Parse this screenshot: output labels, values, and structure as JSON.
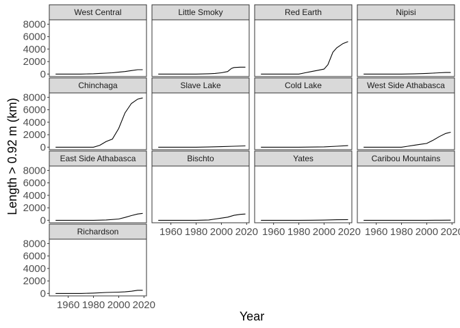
{
  "chart_data": {
    "type": "line",
    "layout": "facet-wrap",
    "xlabel": "Year",
    "ylabel": "Length > 0.92 m (km)",
    "xlim": [
      1945,
      2022
    ],
    "ylim": [
      -400,
      8700
    ],
    "x_ticks": [
      1960,
      1980,
      2000,
      2020
    ],
    "y_ticks": [
      0,
      2000,
      4000,
      6000,
      8000
    ],
    "grid": false,
    "panels": [
      {
        "name": "West Central",
        "points": [
          [
            1950,
            0
          ],
          [
            1960,
            0
          ],
          [
            1970,
            0
          ],
          [
            1980,
            50
          ],
          [
            1985,
            100
          ],
          [
            1990,
            150
          ],
          [
            1995,
            200
          ],
          [
            2000,
            300
          ],
          [
            2005,
            400
          ],
          [
            2010,
            550
          ],
          [
            2015,
            700
          ],
          [
            2019,
            700
          ]
        ]
      },
      {
        "name": "Little Smoky",
        "points": [
          [
            1950,
            0
          ],
          [
            1960,
            0
          ],
          [
            1970,
            0
          ],
          [
            1980,
            0
          ],
          [
            1985,
            20
          ],
          [
            1990,
            50
          ],
          [
            1995,
            100
          ],
          [
            2000,
            200
          ],
          [
            2005,
            400
          ],
          [
            2008,
            900
          ],
          [
            2010,
            1050
          ],
          [
            2015,
            1100
          ],
          [
            2019,
            1100
          ]
        ]
      },
      {
        "name": "Red Earth",
        "points": [
          [
            1950,
            0
          ],
          [
            1960,
            0
          ],
          [
            1970,
            0
          ],
          [
            1980,
            0
          ],
          [
            1985,
            200
          ],
          [
            1990,
            400
          ],
          [
            1995,
            600
          ],
          [
            2000,
            800
          ],
          [
            2003,
            1500
          ],
          [
            2007,
            3500
          ],
          [
            2010,
            4200
          ],
          [
            2015,
            4900
          ],
          [
            2019,
            5200
          ]
        ]
      },
      {
        "name": "Nipisi",
        "points": [
          [
            1950,
            0
          ],
          [
            1960,
            0
          ],
          [
            1970,
            0
          ],
          [
            1980,
            0
          ],
          [
            1990,
            30
          ],
          [
            2000,
            100
          ],
          [
            2005,
            150
          ],
          [
            2010,
            200
          ],
          [
            2015,
            250
          ],
          [
            2019,
            250
          ]
        ]
      },
      {
        "name": "Chinchaga",
        "points": [
          [
            1950,
            0
          ],
          [
            1960,
            0
          ],
          [
            1970,
            0
          ],
          [
            1980,
            0
          ],
          [
            1985,
            300
          ],
          [
            1990,
            900
          ],
          [
            1995,
            1300
          ],
          [
            2000,
            3000
          ],
          [
            2005,
            5500
          ],
          [
            2010,
            7000
          ],
          [
            2015,
            7700
          ],
          [
            2019,
            7900
          ]
        ]
      },
      {
        "name": "Slave Lake",
        "points": [
          [
            1950,
            0
          ],
          [
            1960,
            0
          ],
          [
            1970,
            0
          ],
          [
            1980,
            0
          ],
          [
            1990,
            30
          ],
          [
            2000,
            80
          ],
          [
            2010,
            150
          ],
          [
            2019,
            200
          ]
        ]
      },
      {
        "name": "Cold Lake",
        "points": [
          [
            1950,
            0
          ],
          [
            1960,
            0
          ],
          [
            1970,
            0
          ],
          [
            1980,
            0
          ],
          [
            1990,
            20
          ],
          [
            2000,
            50
          ],
          [
            2010,
            150
          ],
          [
            2019,
            250
          ]
        ]
      },
      {
        "name": "West Side Athabasca",
        "points": [
          [
            1950,
            0
          ],
          [
            1960,
            0
          ],
          [
            1970,
            0
          ],
          [
            1980,
            0
          ],
          [
            1985,
            150
          ],
          [
            1990,
            300
          ],
          [
            1995,
            450
          ],
          [
            2000,
            600
          ],
          [
            2005,
            1100
          ],
          [
            2010,
            1700
          ],
          [
            2015,
            2200
          ],
          [
            2019,
            2400
          ]
        ]
      },
      {
        "name": "East Side Athabasca",
        "points": [
          [
            1950,
            0
          ],
          [
            1960,
            0
          ],
          [
            1970,
            0
          ],
          [
            1980,
            0
          ],
          [
            1990,
            50
          ],
          [
            2000,
            200
          ],
          [
            2005,
            450
          ],
          [
            2010,
            750
          ],
          [
            2015,
            1000
          ],
          [
            2019,
            1100
          ]
        ]
      },
      {
        "name": "Bischto",
        "points": [
          [
            1950,
            0
          ],
          [
            1960,
            0
          ],
          [
            1970,
            0
          ],
          [
            1980,
            0
          ],
          [
            1990,
            50
          ],
          [
            1995,
            200
          ],
          [
            2000,
            350
          ],
          [
            2005,
            500
          ],
          [
            2010,
            800
          ],
          [
            2015,
            950
          ],
          [
            2019,
            1000
          ]
        ]
      },
      {
        "name": "Yates",
        "points": [
          [
            1950,
            0
          ],
          [
            1960,
            0
          ],
          [
            1970,
            0
          ],
          [
            1980,
            0
          ],
          [
            1990,
            10
          ],
          [
            2000,
            30
          ],
          [
            2010,
            80
          ],
          [
            2019,
            100
          ]
        ]
      },
      {
        "name": "Caribou Mountains",
        "points": [
          [
            1950,
            0
          ],
          [
            1960,
            0
          ],
          [
            1980,
            0
          ],
          [
            2000,
            0
          ],
          [
            2010,
            10
          ],
          [
            2019,
            20
          ]
        ]
      },
      {
        "name": "Richardson",
        "points": [
          [
            1950,
            0
          ],
          [
            1960,
            0
          ],
          [
            1970,
            0
          ],
          [
            1980,
            50
          ],
          [
            1990,
            150
          ],
          [
            2000,
            200
          ],
          [
            2005,
            250
          ],
          [
            2010,
            350
          ],
          [
            2015,
            500
          ],
          [
            2019,
            500
          ]
        ]
      }
    ]
  }
}
